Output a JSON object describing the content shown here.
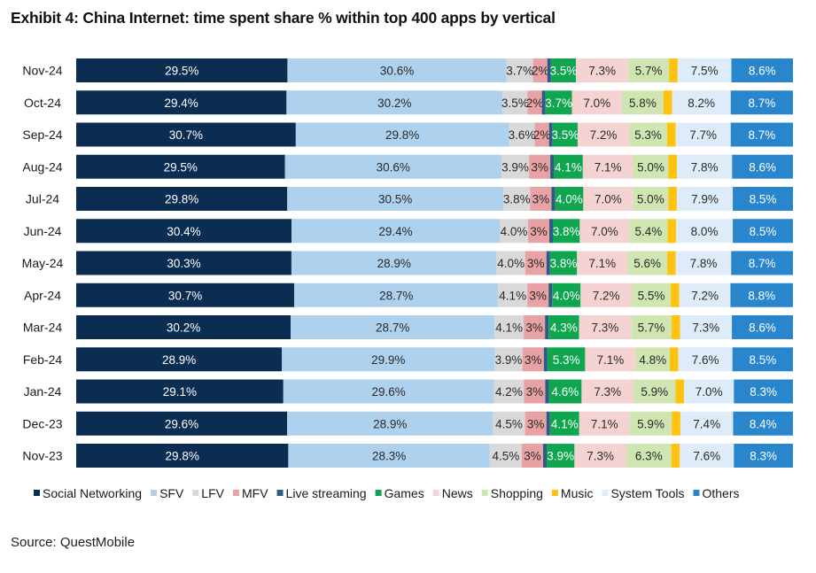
{
  "title": "Exhibit 4: China Internet: time spent share % within top 400 apps by vertical",
  "source": "Source: QuestMobile",
  "colors": {
    "Social Networking": "#0c2d52",
    "SFV": "#aed1ee",
    "LFV": "#d9d9d9",
    "MFV": "#e8a2a4",
    "Live streaming": "#2d5a88",
    "Games": "#10a650",
    "News": "#f6d3d3",
    "Shopping": "#cfe5b2",
    "Music": "#ffc20e",
    "System Tools": "#ddecf8",
    "Others": "#2a86cc"
  },
  "chart_data": {
    "type": "bar",
    "orientation": "horizontal",
    "stacked": true,
    "title": "Exhibit 4: China Internet: time spent share % within top 400 apps by vertical",
    "legend_position": "bottom",
    "xlim": [
      0,
      100
    ],
    "categories": [
      "Nov-24",
      "Oct-24",
      "Sep-24",
      "Aug-24",
      "Jul-24",
      "Jun-24",
      "May-24",
      "Apr-24",
      "Mar-24",
      "Feb-24",
      "Jan-24",
      "Dec-23",
      "Nov-23"
    ],
    "series": [
      {
        "name": "Social Networking",
        "values": [
          29.5,
          29.4,
          30.7,
          29.5,
          29.8,
          30.4,
          30.3,
          30.7,
          30.2,
          28.9,
          29.1,
          29.6,
          29.8
        ],
        "labels": [
          "29.5%",
          "29.4%",
          "30.7%",
          "29.5%",
          "29.8%",
          "30.4%",
          "30.3%",
          "30.7%",
          "30.2%",
          "28.9%",
          "29.1%",
          "29.6%",
          "29.8%"
        ]
      },
      {
        "name": "SFV",
        "values": [
          30.6,
          30.2,
          29.8,
          30.6,
          30.5,
          29.4,
          28.9,
          28.7,
          28.7,
          29.9,
          29.6,
          28.9,
          28.3
        ],
        "labels": [
          "30.6%",
          "30.2%",
          "29.8%",
          "30.6%",
          "30.5%",
          "29.4%",
          "28.9%",
          "28.7%",
          "28.7%",
          "29.9%",
          "29.6%",
          "28.9%",
          "28.3%"
        ]
      },
      {
        "name": "LFV",
        "values": [
          3.7,
          3.5,
          3.6,
          3.9,
          3.8,
          4.0,
          4.0,
          4.1,
          4.1,
          3.9,
          4.2,
          4.5,
          4.5
        ],
        "labels": [
          "3.7%",
          "3.5%",
          "3.6%",
          "3.9%",
          "3.8%",
          "4.0%",
          "4.0%",
          "4.1%",
          "4.1%",
          "3.9%",
          "4.2%",
          "4.5%",
          "4.5%"
        ]
      },
      {
        "name": "MFV",
        "values": [
          2,
          2,
          2,
          3,
          3,
          3,
          3,
          3,
          3,
          3,
          3,
          3,
          3
        ],
        "labels": [
          "2%",
          "2%",
          "2%",
          "3%",
          "3%",
          "3%",
          "3%",
          "3%",
          "3%",
          "3%",
          "3%",
          "3%",
          "3%"
        ]
      },
      {
        "name": "Live streaming",
        "values": [
          0.5,
          0.5,
          0.5,
          0.5,
          0.5,
          0.5,
          0.5,
          0.5,
          0.5,
          0.5,
          0.5,
          0.5,
          0.5
        ],
        "labels": [
          "",
          "",
          "",
          "",
          "",
          "",
          "",
          "",
          "",
          "",
          "",
          "",
          ""
        ]
      },
      {
        "name": "Games",
        "values": [
          3.5,
          3.7,
          3.5,
          4.1,
          4.0,
          3.8,
          3.8,
          4.0,
          4.3,
          5.3,
          4.6,
          4.1,
          3.9
        ],
        "labels": [
          "3.5%",
          "3.7%",
          "3.5%",
          "4.1%",
          "4.0%",
          "3.8%",
          "3.8%",
          "4.0%",
          "4.3%",
          "5.3%",
          "4.6%",
          "4.1%",
          "3.9%"
        ]
      },
      {
        "name": "News",
        "values": [
          7.3,
          7.0,
          7.2,
          7.1,
          7.0,
          7.0,
          7.1,
          7.2,
          7.3,
          7.1,
          7.3,
          7.1,
          7.3
        ],
        "labels": [
          "7.3%",
          "7.0%",
          "7.2%",
          "7.1%",
          "7.0%",
          "7.0%",
          "7.1%",
          "7.2%",
          "7.3%",
          "7.1%",
          "7.3%",
          "7.1%",
          "7.3%"
        ]
      },
      {
        "name": "Shopping",
        "values": [
          5.7,
          5.8,
          5.3,
          5.0,
          5.0,
          5.4,
          5.6,
          5.5,
          5.7,
          4.8,
          5.9,
          5.9,
          6.3
        ],
        "labels": [
          "5.7%",
          "5.8%",
          "5.3%",
          "5.0%",
          "5.0%",
          "5.4%",
          "5.6%",
          "5.5%",
          "5.7%",
          "4.8%",
          "5.9%",
          "5.9%",
          "6.3%"
        ]
      },
      {
        "name": "Music",
        "values": [
          1.2,
          1.2,
          1.2,
          1.2,
          1.2,
          1.2,
          1.2,
          1.2,
          1.2,
          1.2,
          1.2,
          1.2,
          1.2
        ],
        "labels": [
          "",
          "",
          "",
          "",
          "",
          "",
          "",
          "",
          "",
          "",
          "",
          "",
          ""
        ]
      },
      {
        "name": "System Tools",
        "values": [
          7.5,
          8.2,
          7.7,
          7.8,
          7.9,
          8.0,
          7.8,
          7.2,
          7.3,
          7.6,
          7.0,
          7.4,
          7.6
        ],
        "labels": [
          "7.5%",
          "8.2%",
          "7.7%",
          "7.8%",
          "7.9%",
          "8.0%",
          "7.8%",
          "7.2%",
          "7.3%",
          "7.6%",
          "7.0%",
          "7.4%",
          "7.6%"
        ]
      },
      {
        "name": "Others",
        "values": [
          8.6,
          8.7,
          8.7,
          8.6,
          8.5,
          8.5,
          8.7,
          8.8,
          8.6,
          8.5,
          8.3,
          8.4,
          8.3
        ],
        "labels": [
          "8.6%",
          "8.7%",
          "8.7%",
          "8.6%",
          "8.5%",
          "8.5%",
          "8.7%",
          "8.8%",
          "8.6%",
          "8.5%",
          "8.3%",
          "8.4%",
          "8.3%"
        ]
      }
    ]
  }
}
